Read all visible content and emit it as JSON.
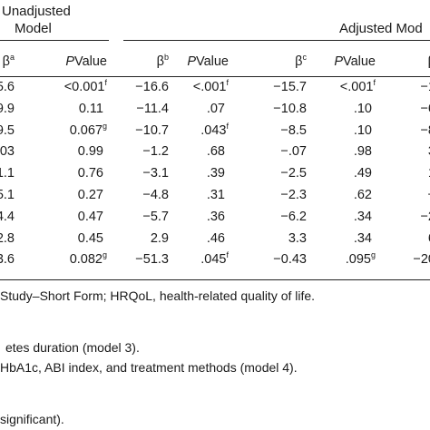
{
  "table": {
    "group_unadjusted": [
      "Unadjusted",
      "Model"
    ],
    "group_adjusted": "Adjusted Mod",
    "col_headers": [
      {
        "sym": "β",
        "sup": "a"
      },
      {
        "p": "P",
        "rest": "Value"
      },
      {
        "sym": "β",
        "sup": "b"
      },
      {
        "p": "P",
        "rest": "Value"
      },
      {
        "sym": "β",
        "sup": "c"
      },
      {
        "p": "P",
        "rest": "Value"
      },
      {
        "sym": "β",
        "sup": ""
      }
    ],
    "rows": [
      [
        {
          "t": "5.6"
        },
        {
          "t": "<0.001",
          "s": "f"
        },
        {
          "t": "−16.6"
        },
        {
          "t": "<.001",
          "s": "f"
        },
        {
          "t": "−15.7"
        },
        {
          "t": "<.001",
          "s": "f"
        },
        {
          "t": "−1"
        }
      ],
      [
        {
          "t": "9.9"
        },
        {
          "t": "0.11"
        },
        {
          "t": "−11.4"
        },
        {
          "t": ".07"
        },
        {
          "t": "−10.8"
        },
        {
          "t": ".10"
        },
        {
          "t": "−6"
        }
      ],
      [
        {
          "t": "9.5"
        },
        {
          "t": "0.067",
          "s": "g"
        },
        {
          "t": "−10.7"
        },
        {
          "t": ".043",
          "s": "f"
        },
        {
          "t": "−8.5"
        },
        {
          "t": ".10"
        },
        {
          "t": "−8"
        }
      ],
      [
        {
          "t": "0.03"
        },
        {
          "t": "0.99"
        },
        {
          "t": "−1.2"
        },
        {
          "t": ".68"
        },
        {
          "t": "−.07"
        },
        {
          "t": ".98"
        },
        {
          "t": "3"
        }
      ],
      [
        {
          "t": "1.1"
        },
        {
          "t": "0.76"
        },
        {
          "t": "−3.1"
        },
        {
          "t": ".39"
        },
        {
          "t": "−2.5"
        },
        {
          "t": ".49"
        },
        {
          "t": "1"
        }
      ],
      [
        {
          "t": "5.1"
        },
        {
          "t": "0.27"
        },
        {
          "t": "−4.8"
        },
        {
          "t": ".31"
        },
        {
          "t": "−2.3"
        },
        {
          "t": ".62"
        },
        {
          "t": "−"
        }
      ],
      [
        {
          "t": "4.4"
        },
        {
          "t": "0.47"
        },
        {
          "t": "−5.7"
        },
        {
          "t": ".36"
        },
        {
          "t": "−6.2"
        },
        {
          "t": ".34"
        },
        {
          "t": "−2"
        }
      ],
      [
        {
          "t": "2.8"
        },
        {
          "t": "0.45"
        },
        {
          "t": "2.9"
        },
        {
          "t": ".46"
        },
        {
          "t": "3.3"
        },
        {
          "t": ".34"
        },
        {
          "t": "6"
        }
      ],
      [
        {
          "t": "3.6"
        },
        {
          "t": "0.082",
          "s": "g"
        },
        {
          "t": "−51.3"
        },
        {
          "t": ".045",
          "s": "f"
        },
        {
          "t": "−0.43"
        },
        {
          "t": ".095",
          "s": "g"
        },
        {
          "t": "−20"
        }
      ]
    ]
  },
  "footnotes": {
    "line1": "Study–Short Form; HRQoL, health-related quality of life.",
    "line2": "etes duration (model 3).",
    "line3": "HbA1c, ABI index, and treatment methods (model 4).",
    "line4": "significant)."
  }
}
